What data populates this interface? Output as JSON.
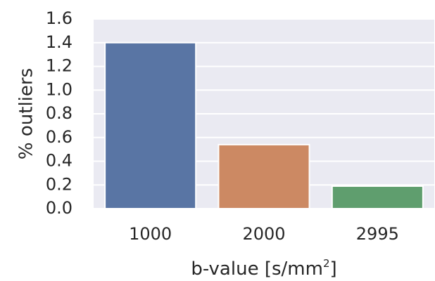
{
  "chart_data": {
    "type": "bar",
    "categories": [
      "1000",
      "2000",
      "2995"
    ],
    "values": [
      1.4,
      0.54,
      0.19
    ],
    "title": "",
    "xlabel": "b-value [s/mm",
    "xlabel_superscript": "2",
    "xlabel_suffix": "]",
    "ylabel": "% outliers",
    "ylim": [
      0,
      1.6
    ],
    "yticks": [
      "0.0",
      "0.2",
      "0.4",
      "0.6",
      "0.8",
      "1.0",
      "1.2",
      "1.4",
      "1.6"
    ],
    "grid": true,
    "legend": "none",
    "colors": [
      "#5975a4",
      "#cc8963",
      "#5f9e6e"
    ],
    "background": "#eaeaf2",
    "gridColor": "#ffffff"
  }
}
